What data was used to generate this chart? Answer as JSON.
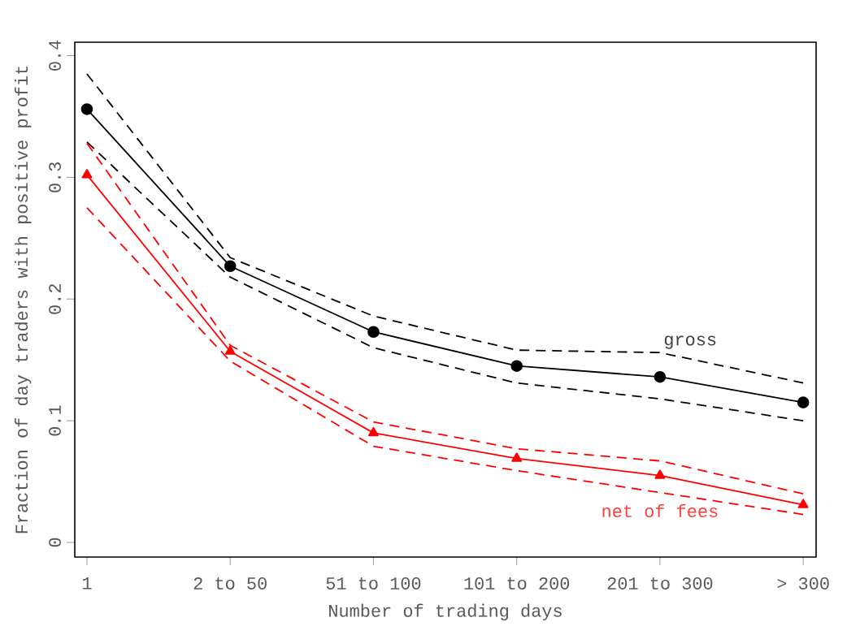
{
  "chart_data": {
    "type": "line",
    "xlabel": "Number of trading days",
    "ylabel": "Fraction of day traders with positive profit",
    "categories": [
      "1",
      "2 to 50",
      "51 to 100",
      "101 to 200",
      "201 to 300",
      "> 300"
    ],
    "series": [
      {
        "name": "gross",
        "color": "#000000",
        "marker": "circle",
        "values": [
          0.356,
          0.227,
          0.173,
          0.145,
          0.136,
          0.115
        ]
      },
      {
        "color": "#000000",
        "marker": "none",
        "line_style": "dashed",
        "values": [
          0.329,
          0.218,
          0.16,
          0.131,
          0.118,
          0.1
        ]
      },
      {
        "color": "#000000",
        "marker": "none",
        "line_style": "dashed",
        "values": [
          0.385,
          0.234,
          0.186,
          0.158,
          0.156,
          0.131
        ]
      },
      {
        "name": "net of fees",
        "color": "#ff0000",
        "marker": "triangle",
        "values": [
          0.302,
          0.157,
          0.09,
          0.069,
          0.055,
          0.031
        ]
      },
      {
        "color": "#ff0000",
        "marker": "none",
        "line_style": "dashed",
        "values": [
          0.275,
          0.149,
          0.079,
          0.059,
          0.041,
          0.023
        ]
      },
      {
        "color": "#ff0000",
        "marker": "none",
        "line_style": "dashed",
        "values": [
          0.328,
          0.162,
          0.099,
          0.077,
          0.067,
          0.04
        ]
      }
    ],
    "ylim": [
      -0.012,
      0.411
    ],
    "yticks": [
      0,
      0.1,
      0.2,
      0.3,
      0.4
    ],
    "grid": false,
    "legend": false,
    "line_style": "solid"
  }
}
